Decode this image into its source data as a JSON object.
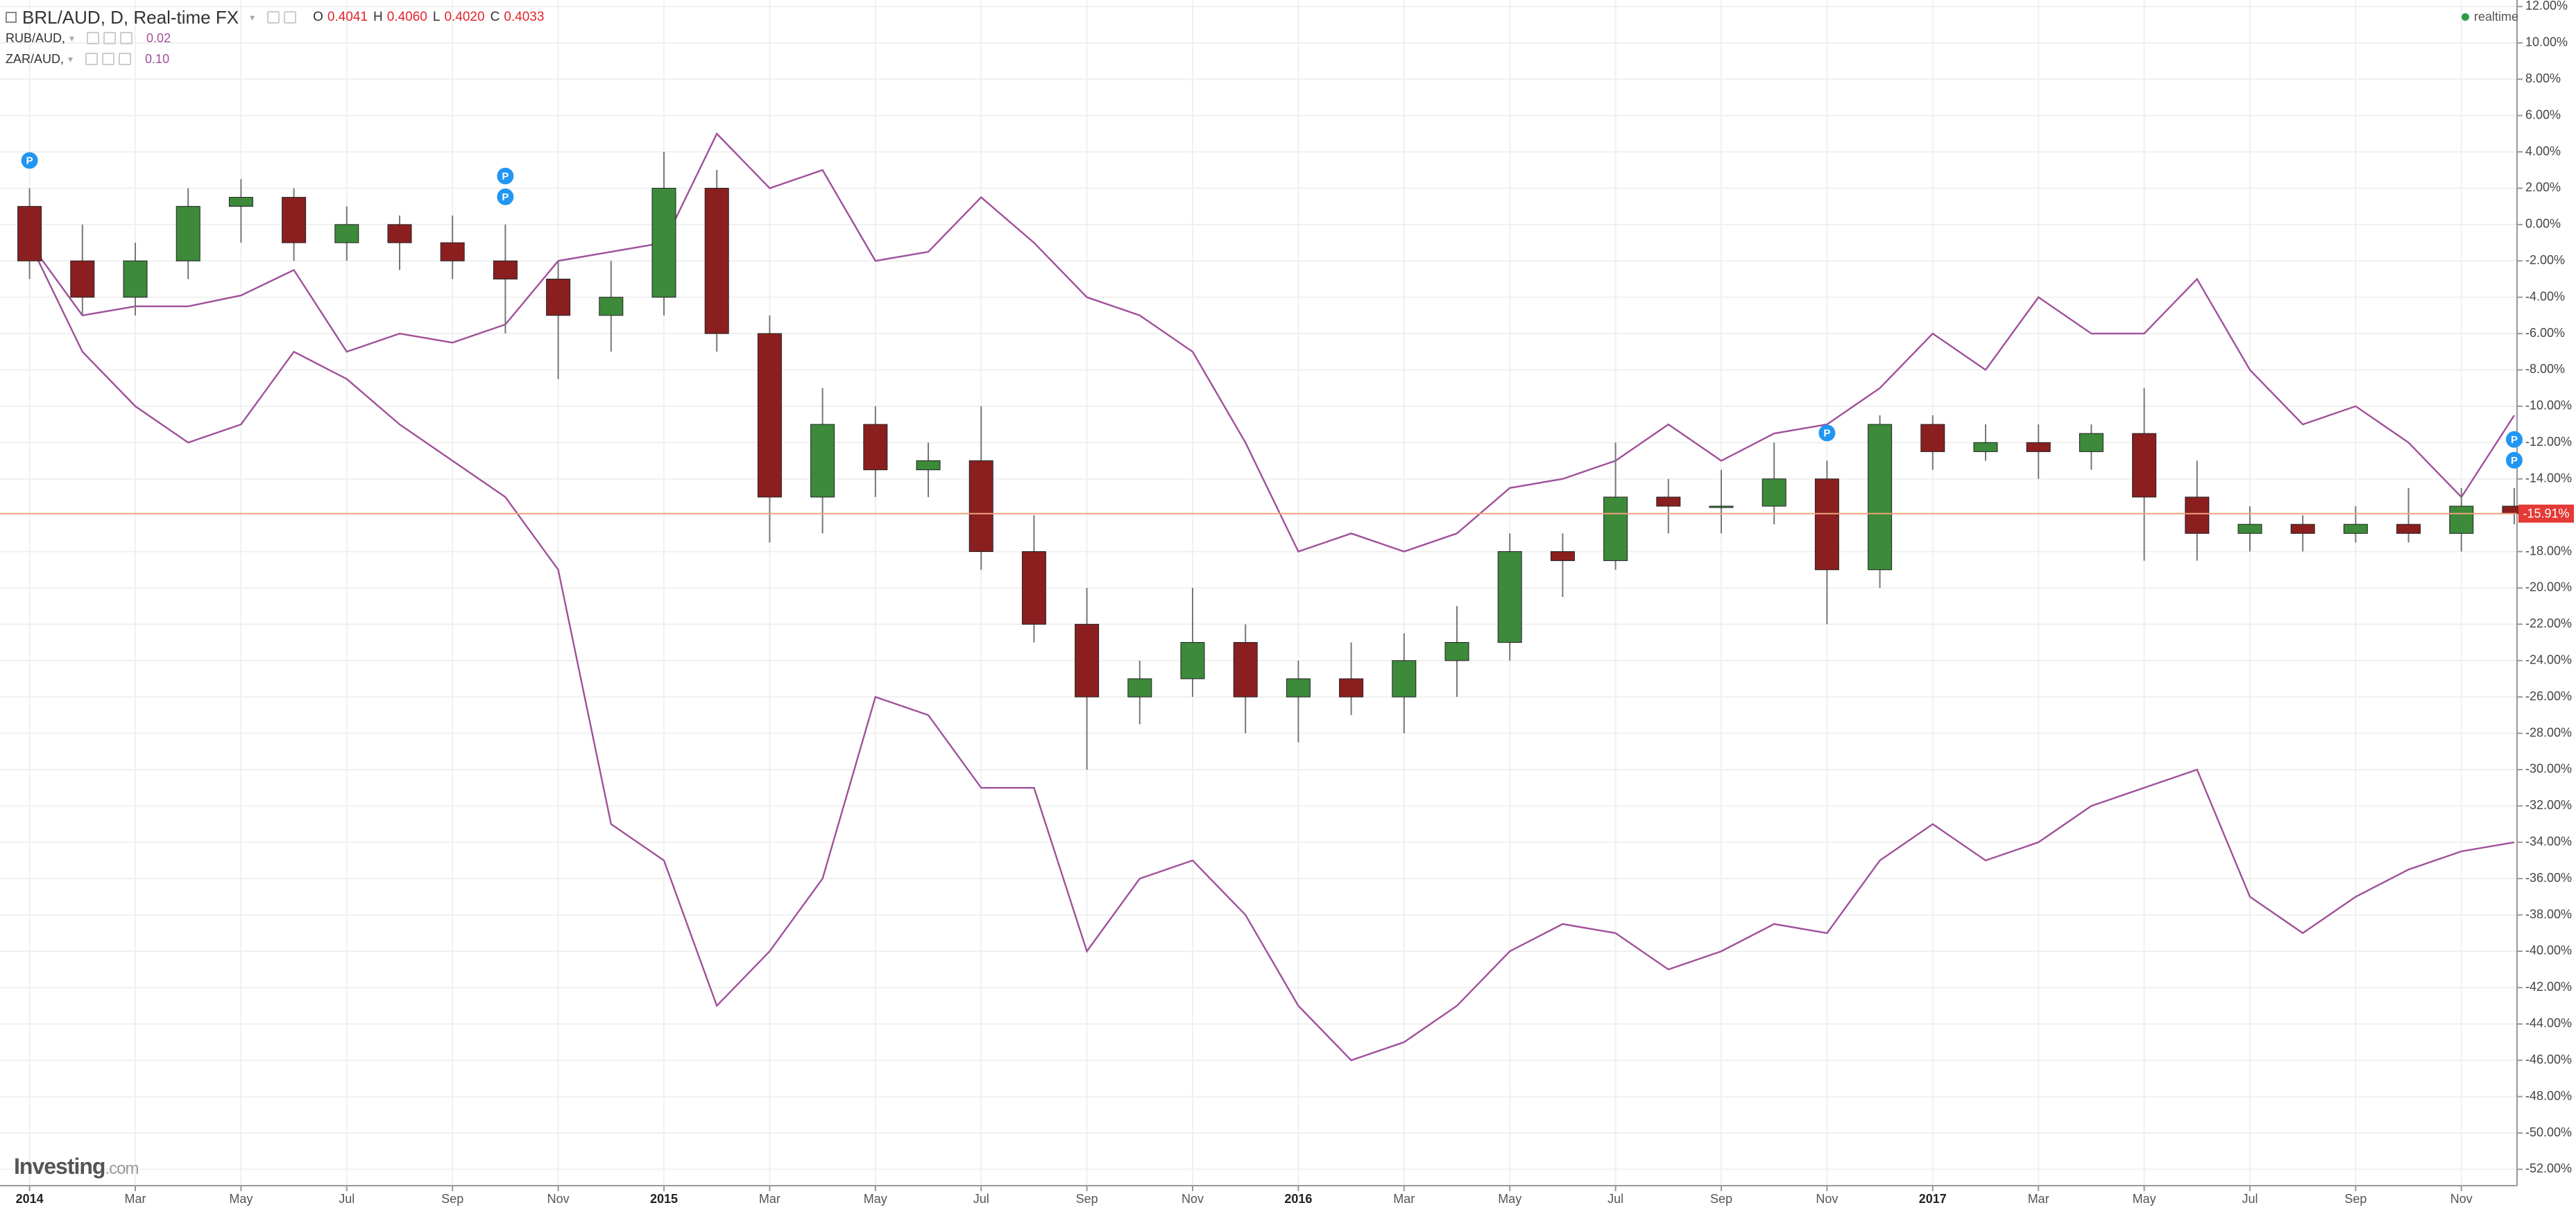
{
  "chart_data": {
    "type": "candlestick",
    "title": "BRL/AUD, D, Real-time FX",
    "ohlc_legend": [
      {
        "label": "O",
        "value": "0.4041"
      },
      {
        "label": "H",
        "value": "0.4060"
      },
      {
        "label": "L",
        "value": "0.4020"
      },
      {
        "label": "C",
        "value": "0.4033"
      }
    ],
    "ohlc_color": "#e0252b",
    "badge": "realtime",
    "logo": {
      "main": "Investing",
      "suffix": ".com"
    },
    "x": [
      "2014-01",
      "2014-02",
      "2014-03",
      "2014-04",
      "2014-05",
      "2014-06",
      "2014-07",
      "2014-08",
      "2014-09",
      "2014-10",
      "2014-11",
      "2014-12",
      "2015-01",
      "2015-02",
      "2015-03",
      "2015-04",
      "2015-05",
      "2015-06",
      "2015-07",
      "2015-08",
      "2015-09",
      "2015-10",
      "2015-11",
      "2015-12",
      "2016-01",
      "2016-02",
      "2016-03",
      "2016-04",
      "2016-05",
      "2016-06",
      "2016-07",
      "2016-08",
      "2016-09",
      "2016-10",
      "2016-11",
      "2016-12",
      "2017-01",
      "2017-02",
      "2017-03",
      "2017-04",
      "2017-05",
      "2017-06",
      "2017-07",
      "2017-08",
      "2017-09",
      "2017-10",
      "2017-11",
      "2017-12"
    ],
    "series": [
      {
        "type": "candlestick",
        "up_color": "#3c8a3a",
        "down_color": "#8b1f1f",
        "wick_color": "#777777",
        "open": [
          1,
          -2,
          -4,
          -2,
          1,
          1.5,
          -1,
          0,
          -1,
          -2,
          -3,
          -5,
          -4,
          2,
          -6,
          -15,
          -11,
          -13.5,
          -13,
          -18,
          -22,
          -26,
          -25,
          -23,
          -26,
          -25,
          -26,
          -24,
          -23,
          -18,
          -18.5,
          -15,
          -15.5,
          -15.5,
          -14,
          -19,
          -11,
          -12.5,
          -12,
          -12.5,
          -11.5,
          -15,
          -17,
          -16.5,
          -17,
          -16.5,
          -17,
          -15.5
        ],
        "high": [
          2,
          0,
          -1,
          2,
          2.5,
          2,
          1,
          0.5,
          0.5,
          0,
          -2,
          -2,
          4,
          3,
          -5,
          -9,
          -10,
          -12,
          -10,
          -16,
          -20,
          -24,
          -20,
          -22,
          -24,
          -23,
          -22.5,
          -21,
          -17,
          -17,
          -12,
          -14,
          -13.5,
          -12,
          -13,
          -10.5,
          -10.5,
          -11,
          -11,
          -11,
          -9,
          -13,
          -15.5,
          -16,
          -15.5,
          -14.5,
          -14.5,
          -14.5
        ],
        "low": [
          -3,
          -5,
          -5,
          -3,
          -1,
          -2,
          -2,
          -2.5,
          -3,
          -6,
          -8.5,
          -7,
          -5,
          -7,
          -17.5,
          -17,
          -15,
          -15,
          -19,
          -23,
          -30,
          -27.5,
          -26,
          -28,
          -28.5,
          -27,
          -28,
          -26,
          -24,
          -20.5,
          -19,
          -17,
          -17,
          -16.5,
          -22,
          -20,
          -13.5,
          -13,
          -14,
          -13.5,
          -18.5,
          -18.5,
          -18,
          -18,
          -17.5,
          -17.5,
          -18,
          -16.5
        ],
        "close": [
          -2,
          -4,
          -2,
          1,
          1.5,
          -1,
          0,
          -1,
          -2,
          -3,
          -5,
          -4,
          2,
          -6,
          -15,
          -11,
          -13.5,
          -13,
          -18,
          -22,
          -26,
          -25,
          -23,
          -26,
          -25,
          -26,
          -24,
          -23,
          -18,
          -18.5,
          -15,
          -15.5,
          -15.5,
          -14,
          -19,
          -11,
          -12.5,
          -12,
          -12.5,
          -11.5,
          -15,
          -17,
          -16.5,
          -17,
          -16.5,
          -17,
          -15.5,
          -15.91
        ]
      },
      {
        "type": "line",
        "name": "RUB/AUD,",
        "legend_value": "0.02",
        "color": "#a0509a",
        "values": [
          -1,
          -7,
          -10,
          -12,
          -11,
          -7,
          -8.5,
          -11,
          -13,
          -15,
          -19,
          -33,
          -35,
          -43,
          -40,
          -36,
          -26,
          -27,
          -31,
          -31,
          -40,
          -36,
          -35,
          -38,
          -43,
          -46,
          -45,
          -43,
          -40,
          -38.5,
          -39,
          -41,
          -40,
          -38.5,
          -39,
          -35,
          -33,
          -35,
          -34,
          -32,
          -31,
          -30,
          -37,
          -39,
          -37,
          -35.5,
          -34.5,
          -34
        ]
      },
      {
        "type": "line",
        "name": "ZAR/AUD,",
        "legend_value": "0.10",
        "color": "#a0509a",
        "values": [
          -1,
          -5,
          -4.5,
          -4.5,
          -3.9,
          -2.5,
          -7,
          -6,
          -6.5,
          -5.5,
          -2,
          -1.5,
          -1,
          5,
          2,
          3,
          -2,
          -1.5,
          1.5,
          -1,
          -4,
          -5,
          -7,
          -12,
          -18,
          -17,
          -18,
          -17,
          -14.5,
          -14,
          -13,
          -11,
          -13,
          -11.5,
          -11,
          -9,
          -6,
          -8,
          -4,
          -6,
          -6,
          -3,
          -8,
          -11,
          -10,
          -12,
          -15,
          -10.5
        ]
      }
    ],
    "ylim": [
      -52.9,
      12.36
    ],
    "yticks": [
      {
        "value": 12,
        "label": "12.00%"
      },
      {
        "value": 10,
        "label": "10.00%"
      },
      {
        "value": 8,
        "label": "8.00%"
      },
      {
        "value": 6,
        "label": "6.00%"
      },
      {
        "value": 4,
        "label": "4.00%"
      },
      {
        "value": 2,
        "label": "2.00%"
      },
      {
        "value": 0,
        "label": "0.00%"
      },
      {
        "value": -2,
        "label": "-2.00%"
      },
      {
        "value": -4,
        "label": "-4.00%"
      },
      {
        "value": -6,
        "label": "-6.00%"
      },
      {
        "value": -8,
        "label": "-8.00%"
      },
      {
        "value": -10,
        "label": "-10.00%"
      },
      {
        "value": -12,
        "label": "-12.00%"
      },
      {
        "value": -14,
        "label": "-14.00%"
      },
      {
        "value": -18,
        "label": "-18.00%"
      },
      {
        "value": -20,
        "label": "-20.00%"
      },
      {
        "value": -22,
        "label": "-22.00%"
      },
      {
        "value": -24,
        "label": "-24.00%"
      },
      {
        "value": -26,
        "label": "-26.00%"
      },
      {
        "value": -28,
        "label": "-28.00%"
      },
      {
        "value": -30,
        "label": "-30.00%"
      },
      {
        "value": -32,
        "label": "-32.00%"
      },
      {
        "value": -34,
        "label": "-34.00%"
      },
      {
        "value": -36,
        "label": "-36.00%"
      },
      {
        "value": -38,
        "label": "-38.00%"
      },
      {
        "value": -40,
        "label": "-40.00%"
      },
      {
        "value": -42,
        "label": "-42.00%"
      },
      {
        "value": -44,
        "label": "-44.00%"
      },
      {
        "value": -46,
        "label": "-46.00%"
      },
      {
        "value": -48,
        "label": "-48.00%"
      },
      {
        "value": -50,
        "label": "-50.00%"
      },
      {
        "value": -52,
        "label": "-52.00%"
      }
    ],
    "xticks": [
      {
        "value": "2014-01",
        "label": "2014"
      },
      {
        "value": "2014-03",
        "label": "Mar"
      },
      {
        "value": "2014-05",
        "label": "May"
      },
      {
        "value": "2014-07",
        "label": "Jul"
      },
      {
        "value": "2014-09",
        "label": "Sep"
      },
      {
        "value": "2014-11",
        "label": "Nov"
      },
      {
        "value": "2015-01",
        "label": "2015"
      },
      {
        "value": "2015-03",
        "label": "Mar"
      },
      {
        "value": "2015-05",
        "label": "May"
      },
      {
        "value": "2015-07",
        "label": "Jul"
      },
      {
        "value": "2015-09",
        "label": "Sep"
      },
      {
        "value": "2015-11",
        "label": "Nov"
      },
      {
        "value": "2016-01",
        "label": "2016"
      },
      {
        "value": "2016-03",
        "label": "Mar"
      },
      {
        "value": "2016-05",
        "label": "May"
      },
      {
        "value": "2016-07",
        "label": "Jul"
      },
      {
        "value": "2016-09",
        "label": "Sep"
      },
      {
        "value": "2016-11",
        "label": "Nov"
      },
      {
        "value": "2017-01",
        "label": "2017"
      },
      {
        "value": "2017-03",
        "label": "Mar"
      },
      {
        "value": "2017-05",
        "label": "May"
      },
      {
        "value": "2017-07",
        "label": "Jul"
      },
      {
        "value": "2017-09",
        "label": "Sep"
      },
      {
        "value": "2017-11",
        "label": "Nov"
      }
    ],
    "grid": true,
    "price_line": {
      "value": -15.91,
      "label": "-15.91%",
      "color": "#f2a07b",
      "label_color": "#e53935"
    },
    "events": [
      {
        "x": "2014-01",
        "label": "P"
      },
      {
        "x": "2014-10",
        "label": "P"
      },
      {
        "x": "2014-10",
        "label": "P"
      },
      {
        "x": "2016-11",
        "label": "P"
      },
      {
        "x": "2017-12",
        "label": "P"
      },
      {
        "x": "2017-12",
        "label": "P"
      }
    ]
  }
}
